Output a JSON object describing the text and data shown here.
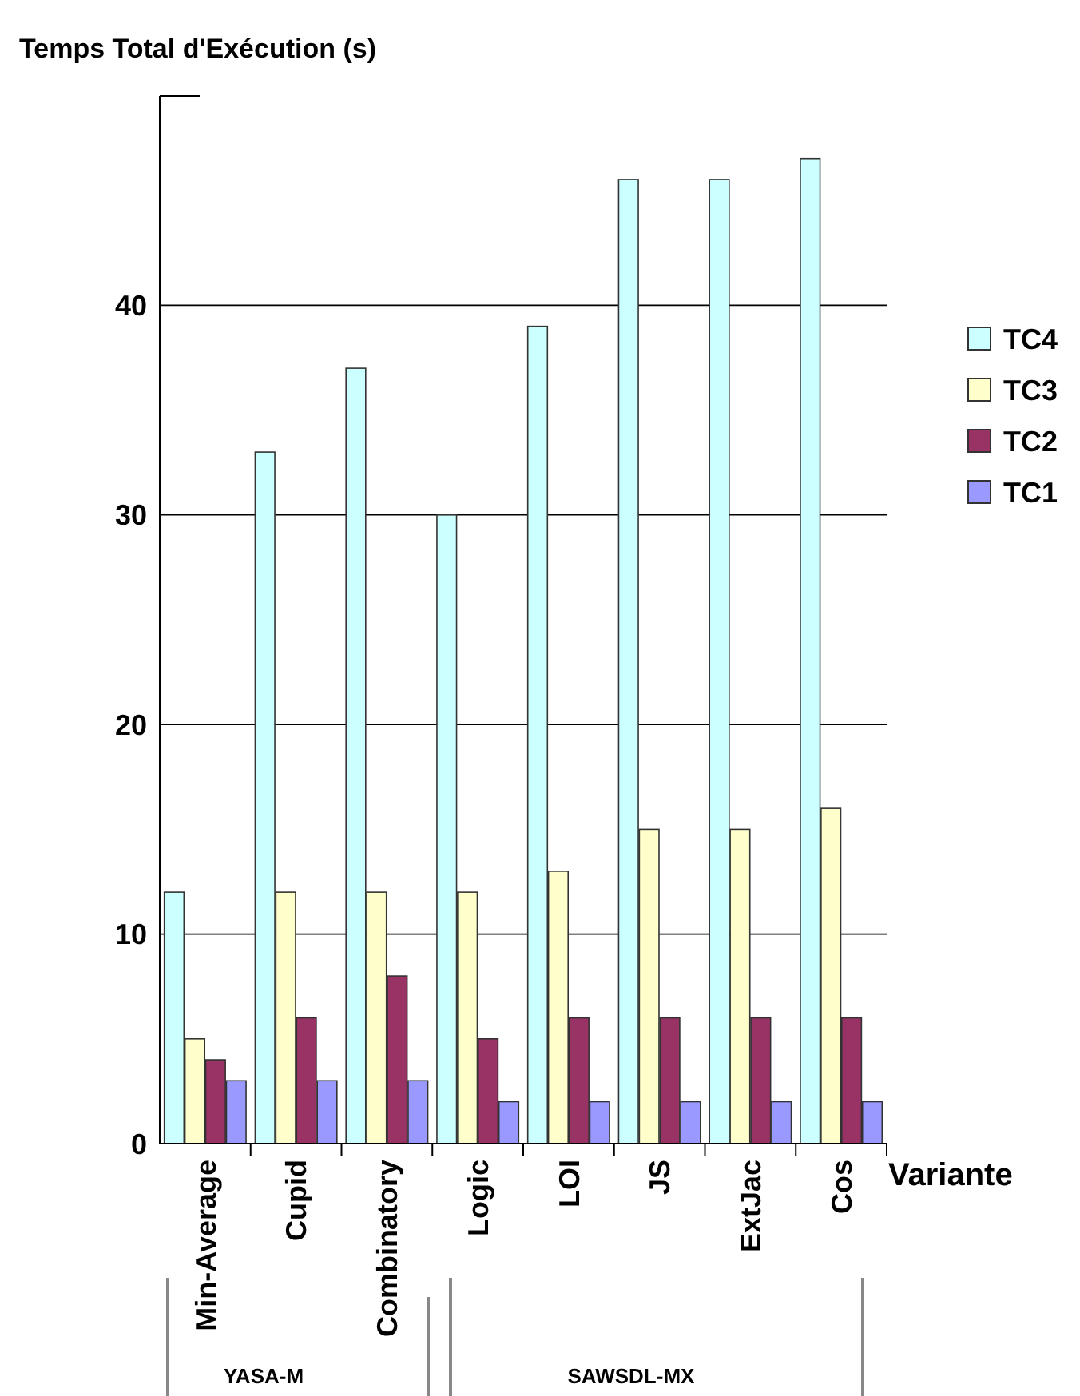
{
  "chart_data": {
    "type": "bar",
    "ylabel": "Temps Total d'Exécution (s)",
    "xlabel": "Variante",
    "categories": [
      "Min-Average",
      "Cupid",
      "Combinatory",
      "Logic",
      "LOI",
      "JS",
      "ExtJac",
      "Cos"
    ],
    "series": [
      {
        "name": "TC4",
        "color": "#ccffff",
        "values": [
          12,
          33,
          37,
          30,
          39,
          46,
          46,
          47
        ]
      },
      {
        "name": "TC3",
        "color": "#ffffcc",
        "values": [
          5,
          12,
          12,
          12,
          13,
          15,
          15,
          16
        ]
      },
      {
        "name": "TC2",
        "color": "#993366",
        "values": [
          4,
          6,
          8,
          5,
          6,
          6,
          6,
          6
        ]
      },
      {
        "name": "TC1",
        "color": "#9999ff",
        "values": [
          3,
          3,
          3,
          2,
          2,
          2,
          2,
          2
        ]
      }
    ],
    "ylim": [
      0,
      50
    ],
    "yticks": [
      0,
      10,
      20,
      30,
      40
    ],
    "grid": "y",
    "legend": "right",
    "annotations": [
      "YASA-M",
      "SAWSDL-MX"
    ]
  }
}
